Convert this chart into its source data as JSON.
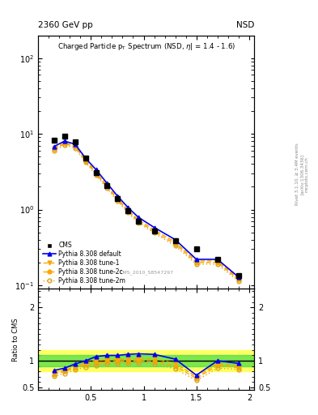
{
  "title_top": "2360 GeV pp",
  "title_top_right": "NSD",
  "watermark": "CMS_2010_S8547297",
  "right_label": "Rivet 3.1.10, ≥ 3.4M events",
  "right_label2": "[arXiv:1306.3436]",
  "right_label3": "mcplots.cern.ch",
  "ylabel_ratio": "Ratio to CMS",
  "cms_x": [
    0.15,
    0.25,
    0.35,
    0.45,
    0.55,
    0.65,
    0.75,
    0.85,
    0.95,
    1.1,
    1.3,
    1.5,
    1.7,
    1.9
  ],
  "cms_y": [
    8.3,
    9.3,
    7.8,
    4.75,
    3.1,
    2.05,
    1.38,
    0.96,
    0.7,
    0.52,
    0.39,
    0.3,
    0.22,
    0.135
  ],
  "pythia_default_x": [
    0.15,
    0.25,
    0.35,
    0.45,
    0.55,
    0.65,
    0.75,
    0.85,
    0.95,
    1.1,
    1.3,
    1.5,
    1.7,
    1.9
  ],
  "pythia_default_y": [
    6.8,
    8.0,
    7.3,
    4.75,
    3.35,
    2.25,
    1.52,
    1.07,
    0.79,
    0.58,
    0.4,
    0.22,
    0.22,
    0.128
  ],
  "pythia_tune1_x": [
    0.15,
    0.25,
    0.35,
    0.45,
    0.55,
    0.65,
    0.75,
    0.85,
    0.95,
    1.1,
    1.3,
    1.5,
    1.7,
    1.9
  ],
  "pythia_tune1_y": [
    6.5,
    7.6,
    7.0,
    4.55,
    3.1,
    2.1,
    1.42,
    0.99,
    0.73,
    0.54,
    0.37,
    0.21,
    0.21,
    0.122
  ],
  "pythia_tune2c_x": [
    0.15,
    0.25,
    0.35,
    0.45,
    0.55,
    0.65,
    0.75,
    0.85,
    0.95,
    1.1,
    1.3,
    1.5,
    1.7,
    1.9
  ],
  "pythia_tune2c_y": [
    6.2,
    7.4,
    6.8,
    4.35,
    2.95,
    2.0,
    1.36,
    0.95,
    0.7,
    0.51,
    0.35,
    0.2,
    0.2,
    0.118
  ],
  "pythia_tune2m_x": [
    0.15,
    0.25,
    0.35,
    0.45,
    0.55,
    0.65,
    0.75,
    0.85,
    0.95,
    1.1,
    1.3,
    1.5,
    1.7,
    1.9
  ],
  "pythia_tune2m_y": [
    5.9,
    7.1,
    6.5,
    4.2,
    2.82,
    1.93,
    1.3,
    0.91,
    0.67,
    0.49,
    0.33,
    0.19,
    0.19,
    0.113
  ],
  "ratio_default_y": [
    0.82,
    0.86,
    0.94,
    1.0,
    1.08,
    1.1,
    1.1,
    1.12,
    1.13,
    1.12,
    1.03,
    0.73,
    1.0,
    0.95
  ],
  "ratio_tune1_y": [
    0.78,
    0.82,
    0.9,
    0.96,
    1.0,
    1.02,
    1.03,
    1.03,
    1.04,
    1.04,
    0.95,
    0.7,
    0.95,
    0.9
  ],
  "ratio_tune2c_y": [
    0.75,
    0.8,
    0.87,
    0.92,
    0.95,
    0.98,
    0.99,
    0.99,
    1.0,
    0.98,
    0.9,
    0.67,
    0.91,
    0.87
  ],
  "ratio_tune2m_y": [
    0.71,
    0.76,
    0.83,
    0.88,
    0.91,
    0.94,
    0.94,
    0.95,
    0.96,
    0.94,
    0.85,
    0.63,
    0.86,
    0.84
  ],
  "band_green_lo": 0.9,
  "band_green_hi": 1.1,
  "band_yellow_lo": 0.8,
  "band_yellow_hi": 1.2,
  "color_blue": "#0000EE",
  "color_orange": "#FFA500",
  "color_gold": "#DAA520",
  "color_cms": "#000000",
  "color_green_band": "#44DD44",
  "color_yellow_band": "#FFFF55",
  "ylim_main": [
    0.09,
    200
  ],
  "ylim_ratio": [
    0.45,
    2.35
  ],
  "xlim": [
    0.0,
    2.05
  ],
  "yticks_ratio": [
    0.5,
    1.0,
    2.0
  ],
  "ytick_labels_ratio": [
    "0.5",
    "1",
    "2"
  ]
}
